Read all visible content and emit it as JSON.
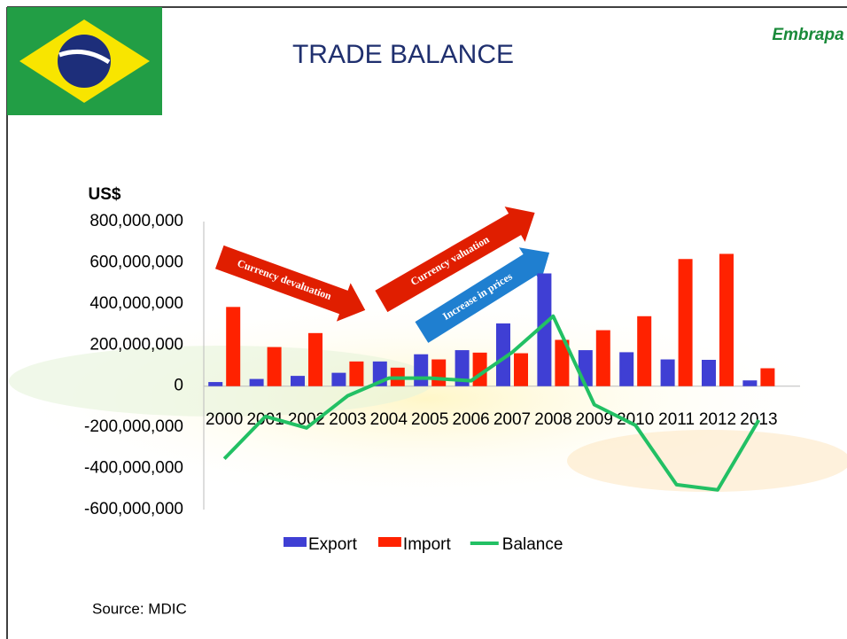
{
  "header": {
    "title": "TRADE BALANCE",
    "logo": "Embrapa"
  },
  "chart_data": {
    "type": "bar-line",
    "y_label": "US$",
    "categories": [
      "2000",
      "2001",
      "2002",
      "2003",
      "2004",
      "2005",
      "2006",
      "2007",
      "2008",
      "2009",
      "2010",
      "2011",
      "2012",
      "2013"
    ],
    "series": [
      {
        "name": "Export",
        "type": "bar",
        "color": "#3f3fd4",
        "values": [
          20000000,
          35000000,
          50000000,
          65000000,
          120000000,
          155000000,
          175000000,
          305000000,
          548000000,
          175000000,
          165000000,
          130000000,
          128000000,
          28000000
        ]
      },
      {
        "name": "Import",
        "type": "bar",
        "color": "#ff2200",
        "values": [
          385000000,
          190000000,
          258000000,
          120000000,
          90000000,
          130000000,
          163000000,
          160000000,
          225000000,
          272000000,
          340000000,
          618000000,
          643000000,
          87000000
        ]
      },
      {
        "name": "Balance",
        "type": "line",
        "color": "#22c064",
        "values": [
          -353000000,
          -147000000,
          -203000000,
          -47000000,
          39000000,
          39000000,
          26000000,
          164000000,
          340000000,
          -90000000,
          -190000000,
          -479000000,
          -504000000,
          -165000000
        ]
      }
    ],
    "ylim": [
      -600000000,
      800000000
    ],
    "yticks": [
      {
        "value": -600000000,
        "label": "-600,000,000"
      },
      {
        "value": -400000000,
        "label": "-400,000,000"
      },
      {
        "value": -200000000,
        "label": "-200,000,000"
      },
      0,
      {
        "value": 200000000,
        "label": "200,000,000"
      },
      {
        "value": 400000000,
        "label": "400,000,000"
      },
      {
        "value": 600000000,
        "label": "600,000,000"
      },
      {
        "value": 800000000,
        "label": "800,000,000"
      }
    ],
    "annotations": [
      "Currency devaluation",
      "Currency valuation",
      "Increase in prices"
    ],
    "legend": "bottom",
    "source": "Source: MDIC"
  }
}
